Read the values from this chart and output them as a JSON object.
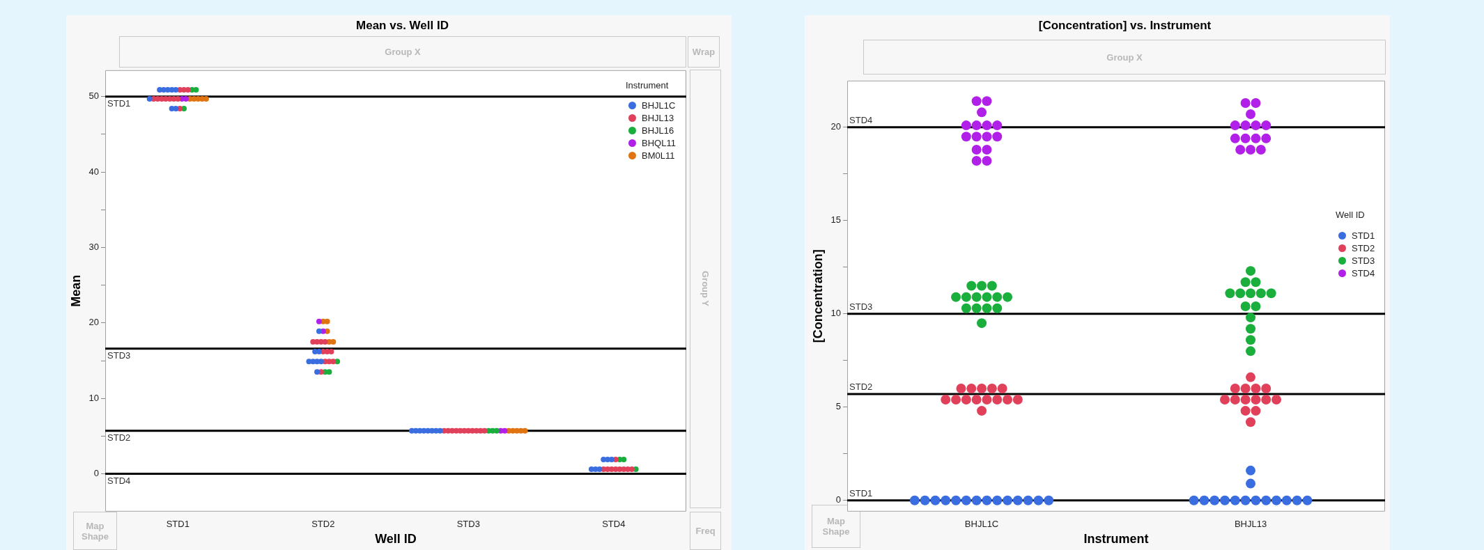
{
  "chart_data": [
    {
      "type": "scatter",
      "title": "Mean vs. Well ID",
      "xlabel": "Well ID",
      "ylabel": "Mean",
      "categories": [
        "STD1",
        "STD2",
        "STD3",
        "STD4"
      ],
      "ylim": [
        -5,
        53.5
      ],
      "yticks": [
        0,
        {
          "value": 5,
          "label": null
        },
        10,
        {
          "value": 15,
          "label": null
        },
        20,
        {
          "value": 25,
          "label": null
        },
        30,
        {
          "value": 35,
          "label": null
        },
        40,
        {
          "value": 45,
          "label": null
        },
        50
      ],
      "marker": "circle",
      "legend": "top right",
      "legend_title": "Instrument",
      "annotations": [
        "Group X",
        "Wrap",
        "Group Y",
        "Map Shape",
        "Freq"
      ],
      "ref_lines": [
        {
          "axis": "y",
          "value": 50,
          "label": "STD1",
          "color": "#000000"
        },
        {
          "axis": "y",
          "value": 16.6,
          "label": "STD3",
          "color": "#000000"
        },
        {
          "axis": "y",
          "value": 5.7,
          "label": "STD2",
          "color": "#000000"
        },
        {
          "axis": "y",
          "value": 0,
          "label": "STD4",
          "color": "#000000"
        }
      ],
      "series": [
        {
          "name": "BHJL1C",
          "color": "#3a6ee0",
          "x": [
            "STD1",
            "STD1",
            "STD1",
            "STD1",
            "STD1",
            "STD1",
            "STD1",
            "STD1",
            "STD2",
            "STD2",
            "STD2",
            "STD2",
            "STD2",
            "STD2",
            "STD2",
            "STD2",
            "STD3",
            "STD3",
            "STD3",
            "STD3",
            "STD3",
            "STD3",
            "STD3",
            "STD3",
            "STD4",
            "STD4",
            "STD4",
            "STD4",
            "STD4",
            "STD4"
          ],
          "values": [
            50.9,
            50.9,
            50.9,
            50.9,
            50.9,
            49.7,
            48.4,
            48.4,
            18.9,
            16.2,
            16.2,
            14.9,
            14.9,
            14.9,
            14.9,
            13.5,
            5.7,
            5.7,
            5.7,
            5.7,
            5.7,
            5.7,
            5.7,
            5.7,
            1.9,
            1.9,
            1.9,
            0.6,
            0.6,
            0.6
          ]
        },
        {
          "name": "BHJL13",
          "color": "#e0405a",
          "x": [
            "STD1",
            "STD1",
            "STD1",
            "STD1",
            "STD1",
            "STD1",
            "STD1",
            "STD1",
            "STD1",
            "STD1",
            "STD1",
            "STD2",
            "STD2",
            "STD2",
            "STD2",
            "STD2",
            "STD2",
            "STD2",
            "STD2",
            "STD2",
            "STD2",
            "STD2",
            "STD3",
            "STD3",
            "STD3",
            "STD3",
            "STD3",
            "STD3",
            "STD3",
            "STD3",
            "STD3",
            "STD3",
            "STD3",
            "STD4",
            "STD4",
            "STD4",
            "STD4",
            "STD4",
            "STD4",
            "STD4",
            "STD4",
            "STD4"
          ],
          "values": [
            50.9,
            50.9,
            50.9,
            49.7,
            49.7,
            49.7,
            49.7,
            49.7,
            49.7,
            49.7,
            48.4,
            17.5,
            17.5,
            17.5,
            17.5,
            16.2,
            16.2,
            16.2,
            14.9,
            14.9,
            14.9,
            13.5,
            5.7,
            5.7,
            5.7,
            5.7,
            5.7,
            5.7,
            5.7,
            5.7,
            5.7,
            5.7,
            5.7,
            1.9,
            0.6,
            0.6,
            0.6,
            0.6,
            0.6,
            0.6,
            0.6,
            0.6
          ]
        },
        {
          "name": "BHJL16",
          "color": "#1aae3c",
          "x": [
            "STD1",
            "STD1",
            "STD1",
            "STD2",
            "STD2",
            "STD2",
            "STD3",
            "STD3",
            "STD3",
            "STD4",
            "STD4",
            "STD4"
          ],
          "values": [
            50.9,
            50.9,
            48.4,
            14.9,
            13.5,
            13.5,
            5.7,
            5.7,
            5.7,
            1.9,
            1.9,
            0.6
          ]
        },
        {
          "name": "BHQL11",
          "color": "#b020e8",
          "x": [
            "STD1",
            "STD1",
            "STD2",
            "STD2",
            "STD3",
            "STD3"
          ],
          "values": [
            49.7,
            49.7,
            20.2,
            18.9,
            5.7,
            5.7
          ]
        },
        {
          "name": "BM0L11",
          "color": "#e07412",
          "x": [
            "STD1",
            "STD1",
            "STD1",
            "STD1",
            "STD1",
            "STD2",
            "STD2",
            "STD2",
            "STD2",
            "STD2",
            "STD3",
            "STD3",
            "STD3",
            "STD3",
            "STD3"
          ],
          "values": [
            49.7,
            49.7,
            49.7,
            49.7,
            49.7,
            20.2,
            20.2,
            18.9,
            17.5,
            17.5,
            5.7,
            5.7,
            5.7,
            5.7,
            5.7
          ]
        }
      ]
    },
    {
      "type": "scatter",
      "title": "[Concentration] vs. Instrument",
      "xlabel": "Instrument",
      "ylabel": "[Concentration]",
      "categories": [
        "BHJL1C",
        "BHJL13"
      ],
      "ylim": [
        -0.6,
        22.5
      ],
      "yticks": [
        0,
        {
          "value": 2.5,
          "label": null
        },
        5,
        {
          "value": 7.5,
          "label": null
        },
        10,
        {
          "value": 12.5,
          "label": null
        },
        15,
        {
          "value": 17.5,
          "label": null
        },
        20
      ],
      "marker": "circle",
      "legend": "right",
      "legend_title": "Well ID",
      "annotations": [
        "Group X",
        "Map Shape"
      ],
      "ref_lines": [
        {
          "axis": "y",
          "value": 20,
          "label": "STD4",
          "color": "#000000"
        },
        {
          "axis": "y",
          "value": 10,
          "label": "STD3",
          "color": "#000000"
        },
        {
          "axis": "y",
          "value": 5.7,
          "label": "STD2",
          "color": "#000000"
        },
        {
          "axis": "y",
          "value": 0,
          "label": "STD1",
          "color": "#000000"
        }
      ],
      "series": [
        {
          "name": "STD1",
          "color": "#3a6ee0",
          "x": [
            "BHJL1C",
            "BHJL1C",
            "BHJL1C",
            "BHJL1C",
            "BHJL1C",
            "BHJL1C",
            "BHJL1C",
            "BHJL1C",
            "BHJL1C",
            "BHJL1C",
            "BHJL1C",
            "BHJL1C",
            "BHJL1C",
            "BHJL1C",
            "BHJL13",
            "BHJL13",
            "BHJL13",
            "BHJL13",
            "BHJL13",
            "BHJL13",
            "BHJL13",
            "BHJL13",
            "BHJL13",
            "BHJL13",
            "BHJL13",
            "BHJL13",
            "BHJL13",
            "BHJL13"
          ],
          "values": [
            0,
            0,
            0,
            0,
            0,
            0,
            0,
            0,
            0,
            0,
            0,
            0,
            0,
            0,
            1.6,
            0.9,
            0,
            0,
            0,
            0,
            0,
            0,
            0,
            0,
            0,
            0,
            0,
            0
          ]
        },
        {
          "name": "STD2",
          "color": "#e0405a",
          "x": [
            "BHJL1C",
            "BHJL1C",
            "BHJL1C",
            "BHJL1C",
            "BHJL1C",
            "BHJL1C",
            "BHJL1C",
            "BHJL1C",
            "BHJL1C",
            "BHJL1C",
            "BHJL1C",
            "BHJL1C",
            "BHJL1C",
            "BHJL1C",
            "BHJL13",
            "BHJL13",
            "BHJL13",
            "BHJL13",
            "BHJL13",
            "BHJL13",
            "BHJL13",
            "BHJL13",
            "BHJL13",
            "BHJL13",
            "BHJL13",
            "BHJL13",
            "BHJL13",
            "BHJL13"
          ],
          "values": [
            6.0,
            6.0,
            6.0,
            6.0,
            6.0,
            5.4,
            5.4,
            5.4,
            5.4,
            5.4,
            5.4,
            5.4,
            5.4,
            4.8,
            6.6,
            6.0,
            6.0,
            6.0,
            6.0,
            5.4,
            5.4,
            5.4,
            5.4,
            5.4,
            5.4,
            4.8,
            4.8,
            4.2
          ]
        },
        {
          "name": "STD3",
          "color": "#1aae3c",
          "x": [
            "BHJL1C",
            "BHJL1C",
            "BHJL1C",
            "BHJL1C",
            "BHJL1C",
            "BHJL1C",
            "BHJL1C",
            "BHJL1C",
            "BHJL1C",
            "BHJL1C",
            "BHJL1C",
            "BHJL1C",
            "BHJL1C",
            "BHJL1C",
            "BHJL13",
            "BHJL13",
            "BHJL13",
            "BHJL13",
            "BHJL13",
            "BHJL13",
            "BHJL13",
            "BHJL13",
            "BHJL13",
            "BHJL13",
            "BHJL13",
            "BHJL13",
            "BHJL13",
            "BHJL13"
          ],
          "values": [
            11.5,
            11.5,
            11.5,
            10.9,
            10.9,
            10.9,
            10.9,
            10.9,
            10.9,
            10.3,
            10.3,
            10.3,
            10.3,
            9.5,
            12.3,
            11.7,
            11.7,
            11.1,
            11.1,
            11.1,
            11.1,
            11.1,
            10.4,
            10.4,
            9.8,
            9.2,
            8.6,
            8.0
          ]
        },
        {
          "name": "STD4",
          "color": "#b020e8",
          "x": [
            "BHJL1C",
            "BHJL1C",
            "BHJL1C",
            "BHJL1C",
            "BHJL1C",
            "BHJL1C",
            "BHJL1C",
            "BHJL1C",
            "BHJL1C",
            "BHJL1C",
            "BHJL1C",
            "BHJL1C",
            "BHJL1C",
            "BHJL1C",
            "BHJL1C",
            "BHJL13",
            "BHJL13",
            "BHJL13",
            "BHJL13",
            "BHJL13",
            "BHJL13",
            "BHJL13",
            "BHJL13",
            "BHJL13",
            "BHJL13",
            "BHJL13",
            "BHJL13",
            "BHJL13",
            "BHJL13"
          ],
          "values": [
            21.4,
            21.4,
            20.8,
            20.1,
            20.1,
            20.1,
            20.1,
            19.5,
            19.5,
            19.5,
            19.5,
            18.8,
            18.8,
            18.2,
            18.2,
            21.3,
            21.3,
            20.7,
            20.1,
            20.1,
            20.1,
            20.1,
            19.4,
            19.4,
            19.4,
            19.4,
            18.8,
            18.8,
            18.8
          ]
        }
      ]
    }
  ]
}
